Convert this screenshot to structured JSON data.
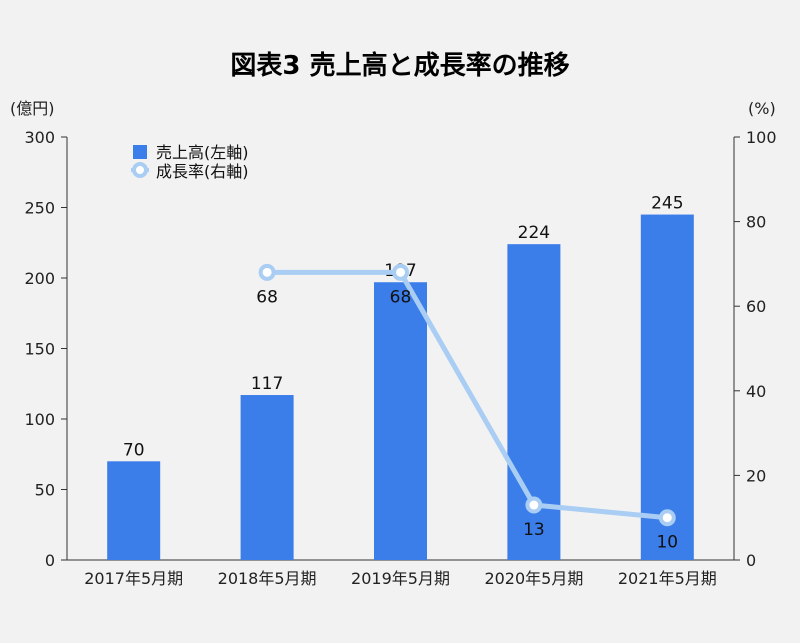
{
  "chart_data": {
    "type": "bar",
    "title": "図表3 売上高と成長率の推移",
    "categories": [
      "2017年5月期",
      "2018年5月期",
      "2019年5月期",
      "2020年5月期",
      "2021年5月期"
    ],
    "y_left_unit": "(億円)",
    "y_right_unit": "(%)",
    "y_left_ticks": [
      "0",
      "50",
      "100",
      "150",
      "200",
      "250",
      "300"
    ],
    "y_right_ticks": [
      "0",
      "20",
      "40",
      "60",
      "80",
      "100"
    ],
    "ylim_left": [
      0,
      300
    ],
    "ylim_right": [
      0,
      100
    ],
    "series": [
      {
        "name": "売上高(左軸)",
        "type": "bar",
        "axis": "left",
        "color": "#3b7de9",
        "values": [
          70,
          117,
          197,
          224,
          245
        ],
        "labels": [
          "70",
          "117",
          "197",
          "224",
          "245"
        ]
      },
      {
        "name": "成長率(右軸)",
        "type": "line",
        "axis": "right",
        "color": "#a9cdf3",
        "values": [
          null,
          68,
          68,
          13,
          10
        ],
        "labels": [
          "",
          "68",
          "68",
          "13",
          "10"
        ]
      }
    ],
    "legend_position": "top-left",
    "grid": false
  }
}
